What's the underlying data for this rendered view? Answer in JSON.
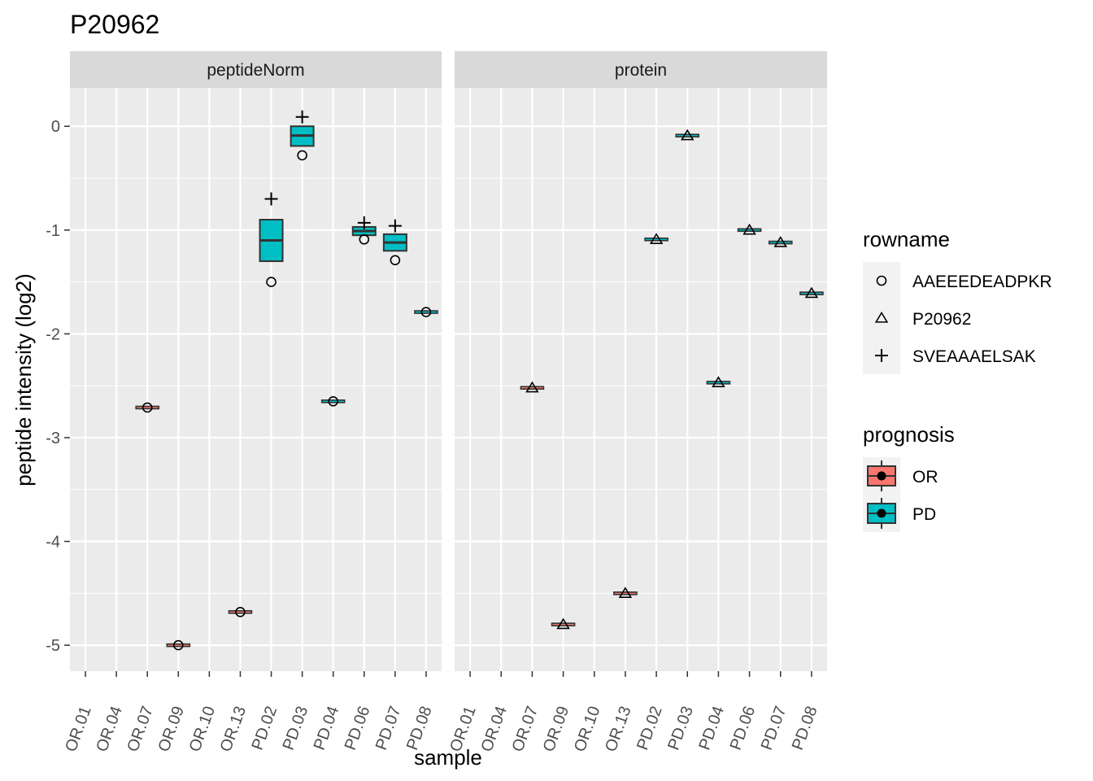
{
  "chart_data": {
    "type": "boxplot",
    "title": "P20962",
    "xlabel": "sample",
    "ylabel": "peptide intensity (log2)",
    "ylim": [
      -5.25,
      0.37
    ],
    "yticks": [
      "0",
      "-1",
      "-2",
      "-3",
      "-4",
      "-5"
    ],
    "ytick_values": [
      0,
      -1,
      -2,
      -3,
      -4,
      -5
    ],
    "categories": [
      "OR.01",
      "OR.04",
      "OR.07",
      "OR.09",
      "OR.10",
      "OR.13",
      "PD.02",
      "PD.03",
      "PD.04",
      "PD.06",
      "PD.07",
      "PD.08"
    ],
    "grid": true,
    "legend_placement": "right",
    "facets": [
      {
        "label": "peptideNorm",
        "boxes": [
          {
            "sample": "OR.07",
            "prognosis": "OR",
            "q1": -2.71,
            "median": -2.71,
            "q3": -2.71
          },
          {
            "sample": "OR.09",
            "prognosis": "OR",
            "q1": -5.0,
            "median": -5.0,
            "q3": -5.0
          },
          {
            "sample": "OR.13",
            "prognosis": "OR",
            "q1": -4.68,
            "median": -4.68,
            "q3": -4.68
          },
          {
            "sample": "PD.02",
            "prognosis": "PD",
            "q1": -1.3,
            "median": -1.1,
            "q3": -0.9
          },
          {
            "sample": "PD.03",
            "prognosis": "PD",
            "q1": -0.19,
            "median": -0.09,
            "q3": 0.0
          },
          {
            "sample": "PD.04",
            "prognosis": "PD",
            "q1": -2.65,
            "median": -2.65,
            "q3": -2.65
          },
          {
            "sample": "PD.06",
            "prognosis": "PD",
            "q1": -1.05,
            "median": -1.01,
            "q3": -0.97
          },
          {
            "sample": "PD.07",
            "prognosis": "PD",
            "q1": -1.2,
            "median": -1.12,
            "q3": -1.04
          },
          {
            "sample": "PD.08",
            "prognosis": "PD",
            "q1": -1.79,
            "median": -1.79,
            "q3": -1.79
          }
        ],
        "points": [
          {
            "sample": "OR.07",
            "rowname": "AAEEEDEADPKR",
            "y": -2.71
          },
          {
            "sample": "OR.09",
            "rowname": "AAEEEDEADPKR",
            "y": -5.0
          },
          {
            "sample": "OR.13",
            "rowname": "AAEEEDEADPKR",
            "y": -4.68
          },
          {
            "sample": "PD.02",
            "rowname": "AAEEEDEADPKR",
            "y": -1.5
          },
          {
            "sample": "PD.02",
            "rowname": "SVEAAAELSAK",
            "y": -0.7
          },
          {
            "sample": "PD.03",
            "rowname": "AAEEEDEADPKR",
            "y": -0.28
          },
          {
            "sample": "PD.03",
            "rowname": "SVEAAAELSAK",
            "y": 0.09
          },
          {
            "sample": "PD.04",
            "rowname": "AAEEEDEADPKR",
            "y": -2.65
          },
          {
            "sample": "PD.06",
            "rowname": "AAEEEDEADPKR",
            "y": -1.09
          },
          {
            "sample": "PD.06",
            "rowname": "SVEAAAELSAK",
            "y": -0.93
          },
          {
            "sample": "PD.07",
            "rowname": "AAEEEDEADPKR",
            "y": -1.29
          },
          {
            "sample": "PD.07",
            "rowname": "SVEAAAELSAK",
            "y": -0.96
          },
          {
            "sample": "PD.08",
            "rowname": "AAEEEDEADPKR",
            "y": -1.79
          }
        ]
      },
      {
        "label": "protein",
        "boxes": [
          {
            "sample": "OR.07",
            "prognosis": "OR",
            "q1": -2.52,
            "median": -2.52,
            "q3": -2.52
          },
          {
            "sample": "OR.09",
            "prognosis": "OR",
            "q1": -4.8,
            "median": -4.8,
            "q3": -4.8
          },
          {
            "sample": "OR.13",
            "prognosis": "OR",
            "q1": -4.5,
            "median": -4.5,
            "q3": -4.5
          },
          {
            "sample": "PD.02",
            "prognosis": "PD",
            "q1": -1.09,
            "median": -1.09,
            "q3": -1.09
          },
          {
            "sample": "PD.03",
            "prognosis": "PD",
            "q1": -0.09,
            "median": -0.09,
            "q3": -0.09
          },
          {
            "sample": "PD.04",
            "prognosis": "PD",
            "q1": -2.47,
            "median": -2.47,
            "q3": -2.47
          },
          {
            "sample": "PD.06",
            "prognosis": "PD",
            "q1": -1.0,
            "median": -1.0,
            "q3": -1.0
          },
          {
            "sample": "PD.07",
            "prognosis": "PD",
            "q1": -1.12,
            "median": -1.12,
            "q3": -1.12
          },
          {
            "sample": "PD.08",
            "prognosis": "PD",
            "q1": -1.61,
            "median": -1.61,
            "q3": -1.61
          }
        ],
        "points": [
          {
            "sample": "OR.07",
            "rowname": "P20962",
            "y": -2.52
          },
          {
            "sample": "OR.09",
            "rowname": "P20962",
            "y": -4.8
          },
          {
            "sample": "OR.13",
            "rowname": "P20962",
            "y": -4.5
          },
          {
            "sample": "PD.02",
            "rowname": "P20962",
            "y": -1.09
          },
          {
            "sample": "PD.03",
            "rowname": "P20962",
            "y": -0.09
          },
          {
            "sample": "PD.04",
            "rowname": "P20962",
            "y": -2.47
          },
          {
            "sample": "PD.06",
            "rowname": "P20962",
            "y": -1.0
          },
          {
            "sample": "PD.07",
            "rowname": "P20962",
            "y": -1.12
          },
          {
            "sample": "PD.08",
            "rowname": "P20962",
            "y": -1.61
          }
        ]
      }
    ],
    "legends": [
      {
        "title": "rowname",
        "items": [
          {
            "label": "AAEEEDEADPKR",
            "shape": "circle"
          },
          {
            "label": "P20962",
            "shape": "triangle"
          },
          {
            "label": "SVEAAAELSAK",
            "shape": "plus"
          }
        ]
      },
      {
        "title": "prognosis",
        "items": [
          {
            "label": "OR",
            "color": "#F8766D"
          },
          {
            "label": "PD",
            "color": "#00BFC4"
          }
        ]
      }
    ],
    "colors": {
      "panel_background": "#EBEBEB",
      "strip_background": "#D9D9D9",
      "gridline": "#FFFFFF",
      "OR": "#F8766D",
      "PD": "#00BFC4"
    }
  }
}
